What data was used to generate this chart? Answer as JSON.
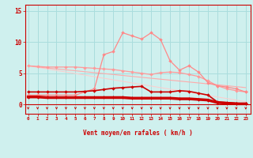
{
  "xlabel": "Vent moyen/en rafales ( km/h )",
  "background_color": "#cff0ee",
  "grid_color": "#aadddd",
  "x_ticks": [
    0,
    1,
    2,
    3,
    4,
    5,
    6,
    7,
    8,
    9,
    10,
    11,
    12,
    13,
    14,
    15,
    16,
    17,
    18,
    19,
    20,
    21,
    22,
    23
  ],
  "ylim": [
    -1.5,
    16
  ],
  "xlim": [
    -0.3,
    23.5
  ],
  "y_ticks": [
    0,
    5,
    10,
    15
  ],
  "line_rafales": {
    "y": [
      1.5,
      1.5,
      1.5,
      1.5,
      1.5,
      1.5,
      2.0,
      2.5,
      8.0,
      8.5,
      11.5,
      11.0,
      10.5,
      11.5,
      10.4,
      7.0,
      5.5,
      6.2,
      5.2,
      3.5,
      3.0,
      2.8,
      2.5,
      2.0
    ],
    "color": "#ff8888",
    "lw": 0.9,
    "marker": "D",
    "ms": 2.0
  },
  "line_tend1": {
    "y": [
      6.2,
      6.1,
      6.0,
      6.0,
      6.0,
      6.0,
      5.9,
      5.8,
      5.7,
      5.6,
      5.4,
      5.2,
      5.0,
      4.8,
      5.1,
      5.2,
      5.1,
      4.8,
      4.5,
      3.8,
      3.0,
      2.5,
      2.2,
      2.0
    ],
    "color": "#ff9999",
    "lw": 0.9,
    "marker": "D",
    "ms": 2.0
  },
  "line_tend2": {
    "y": [
      6.2,
      6.0,
      5.85,
      5.7,
      5.55,
      5.4,
      5.25,
      5.1,
      4.95,
      4.8,
      4.65,
      4.5,
      4.35,
      4.2,
      4.05,
      3.9,
      3.75,
      3.6,
      3.45,
      3.3,
      3.15,
      3.0,
      2.85,
      2.7
    ],
    "color": "#ffaaaa",
    "lw": 0.8,
    "marker": null,
    "ms": 0
  },
  "line_tend3": {
    "y": [
      6.2,
      5.95,
      5.7,
      5.45,
      5.2,
      4.95,
      4.7,
      4.45,
      4.2,
      3.95,
      3.7,
      3.45,
      3.2,
      2.95,
      2.7,
      2.45,
      2.2,
      1.95,
      1.7,
      1.45,
      1.2,
      0.95,
      0.7,
      0.45
    ],
    "color": "#ffcccc",
    "lw": 0.7,
    "marker": null,
    "ms": 0
  },
  "line_moyen": {
    "y": [
      2.0,
      2.0,
      2.0,
      2.0,
      2.0,
      2.0,
      2.1,
      2.2,
      2.4,
      2.6,
      2.7,
      2.8,
      2.9,
      2.0,
      2.0,
      2.0,
      2.2,
      2.1,
      1.8,
      1.5,
      0.4,
      0.3,
      0.2,
      0.1
    ],
    "color": "#cc0000",
    "lw": 1.2,
    "marker": "D",
    "ms": 2.0
  },
  "line_thick": {
    "y": [
      1.2,
      1.2,
      1.1,
      1.1,
      1.1,
      1.1,
      1.1,
      1.1,
      1.1,
      1.1,
      1.1,
      1.0,
      1.0,
      1.0,
      1.0,
      1.0,
      0.9,
      0.9,
      0.8,
      0.7,
      0.3,
      0.2,
      0.1,
      0.1
    ],
    "color": "#cc0000",
    "lw": 2.5,
    "marker": "D",
    "ms": 2.0
  },
  "arrow_color": "#cc0000",
  "spine_color": "#cc0000",
  "tick_color": "#cc0000",
  "label_color": "#cc0000"
}
